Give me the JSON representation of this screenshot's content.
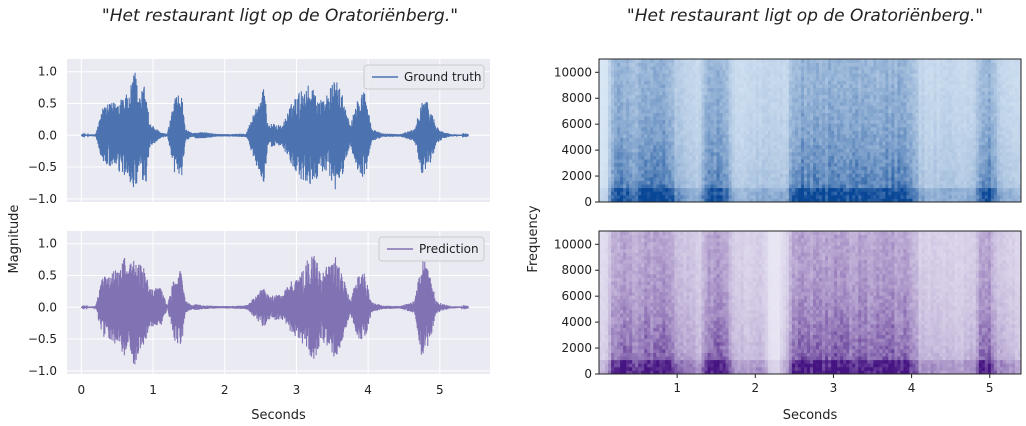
{
  "figure": {
    "left_title": "\"Het restaurant ligt op de Oratoriënberg.\"",
    "right_title": "\"Het restaurant ligt op de Oratoriënberg.\""
  },
  "chart_data": [
    {
      "type": "line",
      "panel": "waveform-top",
      "series": [
        {
          "name": "Ground truth",
          "color": "#4c72b0"
        }
      ],
      "xlim": [
        -0.2,
        5.7
      ],
      "ylim": [
        -1.05,
        1.2
      ],
      "yticks": [
        1.0,
        0.5,
        0.0,
        -0.5,
        -1.0
      ],
      "ytick_labels": [
        "1.0",
        "0.5",
        "0.0",
        "−0.5",
        "−1.0"
      ],
      "grid": true,
      "legend_placement": "top-right",
      "ylabel": "Magnitude",
      "envelope": {
        "x": [
          0,
          0.2,
          0.3,
          0.4,
          0.5,
          0.6,
          0.65,
          0.75,
          0.8,
          0.9,
          0.95,
          1.05,
          1.1,
          1.2,
          1.3,
          1.4,
          1.45,
          1.55,
          1.6,
          1.7,
          1.9,
          2.1,
          2.3,
          2.45,
          2.55,
          2.6,
          2.8,
          2.95,
          3.05,
          3.15,
          3.25,
          3.35,
          3.45,
          3.55,
          3.65,
          3.75,
          3.85,
          3.95,
          4.05,
          4.2,
          4.45,
          4.65,
          4.75,
          4.85,
          4.95,
          5.05,
          5.15,
          5.3,
          5.4
        ],
        "amp": [
          0.005,
          0.02,
          0.45,
          0.5,
          0.55,
          0.7,
          0.6,
          1.05,
          0.6,
          0.85,
          0.2,
          0.1,
          0.05,
          0.02,
          0.6,
          0.65,
          0.1,
          0.03,
          0.05,
          0.05,
          0.02,
          0.02,
          0.03,
          0.5,
          0.75,
          0.2,
          0.15,
          0.55,
          0.7,
          0.8,
          0.75,
          0.55,
          0.7,
          0.9,
          0.6,
          0.15,
          0.55,
          0.75,
          0.1,
          0.03,
          0.02,
          0.1,
          0.6,
          0.5,
          0.15,
          0.05,
          0.02,
          0.01,
          0.005
        ]
      }
    },
    {
      "type": "line",
      "panel": "waveform-bottom",
      "series": [
        {
          "name": "Prediction",
          "color": "#8172b3"
        }
      ],
      "xlim": [
        -0.2,
        5.7
      ],
      "xticks": [
        0,
        1,
        2,
        3,
        4,
        5
      ],
      "xtick_labels": [
        "0",
        "1",
        "2",
        "3",
        "4",
        "5"
      ],
      "xlabel": "Seconds",
      "ylim": [
        -1.05,
        1.2
      ],
      "yticks": [
        1.0,
        0.5,
        0.0,
        -0.5,
        -1.0
      ],
      "ytick_labels": [
        "1.0",
        "0.5",
        "0.0",
        "−0.5",
        "−1.0"
      ],
      "grid": true,
      "legend_placement": "top-right",
      "envelope": {
        "x": [
          0,
          0.2,
          0.3,
          0.4,
          0.5,
          0.6,
          0.65,
          0.75,
          0.8,
          0.9,
          0.95,
          1.05,
          1.1,
          1.2,
          1.3,
          1.4,
          1.45,
          1.55,
          1.6,
          1.7,
          1.9,
          2.1,
          2.3,
          2.45,
          2.55,
          2.6,
          2.8,
          2.95,
          3.05,
          3.15,
          3.25,
          3.35,
          3.45,
          3.55,
          3.65,
          3.75,
          3.85,
          3.95,
          4.05,
          4.2,
          4.45,
          4.65,
          4.75,
          4.85,
          4.95,
          5.05,
          5.15,
          5.3,
          5.4
        ],
        "amp": [
          0.005,
          0.02,
          0.5,
          0.55,
          0.6,
          0.8,
          0.55,
          1.0,
          0.7,
          0.6,
          0.3,
          0.3,
          0.35,
          0.02,
          0.55,
          0.6,
          0.1,
          0.03,
          0.05,
          0.03,
          0.02,
          0.02,
          0.03,
          0.2,
          0.35,
          0.2,
          0.2,
          0.45,
          0.5,
          0.75,
          0.85,
          0.5,
          0.7,
          0.85,
          0.5,
          0.1,
          0.5,
          0.55,
          0.08,
          0.03,
          0.02,
          0.1,
          0.8,
          0.6,
          0.1,
          0.05,
          0.02,
          0.01,
          0.005
        ]
      }
    },
    {
      "type": "heatmap",
      "panel": "spectrogram-top",
      "colormap": "Blues",
      "xlim": [
        0,
        5.4
      ],
      "ylim": [
        0,
        11025
      ],
      "yticks": [
        0,
        2000,
        4000,
        6000,
        8000,
        10000
      ],
      "ytick_labels": [
        "0",
        "2000",
        "4000",
        "6000",
        "8000",
        "10000"
      ],
      "ylabel": "Frequency",
      "energy": {
        "x": [
          0,
          0.1,
          0.2,
          0.3,
          0.4,
          0.5,
          0.6,
          0.7,
          0.8,
          0.9,
          1.0,
          1.1,
          1.2,
          1.3,
          1.4,
          1.5,
          1.6,
          1.7,
          1.8,
          1.9,
          2.0,
          2.1,
          2.2,
          2.3,
          2.4,
          2.5,
          2.6,
          2.7,
          2.8,
          2.9,
          3.0,
          3.1,
          3.2,
          3.3,
          3.4,
          3.5,
          3.6,
          3.7,
          3.8,
          3.9,
          4.0,
          4.1,
          4.2,
          4.3,
          4.4,
          4.5,
          4.6,
          4.7,
          4.8,
          4.9,
          5.0,
          5.1,
          5.2,
          5.3,
          5.4
        ],
        "e": [
          0.05,
          0.1,
          0.85,
          0.9,
          0.8,
          0.75,
          0.9,
          0.85,
          0.95,
          0.8,
          0.45,
          0.35,
          0.3,
          0.3,
          0.85,
          0.9,
          0.85,
          0.3,
          0.25,
          0.25,
          0.3,
          0.3,
          0.3,
          0.3,
          0.3,
          0.8,
          0.9,
          0.85,
          0.85,
          0.9,
          0.95,
          0.9,
          0.85,
          0.9,
          0.95,
          0.9,
          0.8,
          0.9,
          0.85,
          0.9,
          0.75,
          0.35,
          0.3,
          0.3,
          0.3,
          0.3,
          0.3,
          0.3,
          0.35,
          0.9,
          0.85,
          0.4,
          0.3,
          0.25,
          0.2
        ]
      }
    },
    {
      "type": "heatmap",
      "panel": "spectrogram-bottom",
      "colormap": "Purples",
      "xlim": [
        0,
        5.4
      ],
      "xticks": [
        1,
        2,
        3,
        4,
        5
      ],
      "xtick_labels": [
        "1",
        "2",
        "3",
        "4",
        "5"
      ],
      "xlabel": "Seconds",
      "ylim": [
        0,
        11025
      ],
      "yticks": [
        0,
        2000,
        4000,
        6000,
        8000,
        10000
      ],
      "ytick_labels": [
        "0",
        "2000",
        "4000",
        "6000",
        "8000",
        "10000"
      ],
      "energy": {
        "x": [
          0,
          0.1,
          0.2,
          0.3,
          0.4,
          0.5,
          0.6,
          0.7,
          0.8,
          0.9,
          1.0,
          1.1,
          1.2,
          1.3,
          1.4,
          1.5,
          1.6,
          1.7,
          1.8,
          1.9,
          2.0,
          2.1,
          2.2,
          2.3,
          2.4,
          2.5,
          2.6,
          2.7,
          2.8,
          2.9,
          3.0,
          3.1,
          3.2,
          3.3,
          3.4,
          3.5,
          3.6,
          3.7,
          3.8,
          3.9,
          4.0,
          4.1,
          4.2,
          4.3,
          4.4,
          4.5,
          4.6,
          4.7,
          4.8,
          4.9,
          5.0,
          5.1,
          5.2,
          5.3,
          5.4
        ],
        "e": [
          0.15,
          0.2,
          0.8,
          0.85,
          0.75,
          0.7,
          0.9,
          0.8,
          0.95,
          0.75,
          0.5,
          0.45,
          0.4,
          0.35,
          0.8,
          0.9,
          0.85,
          0.35,
          0.3,
          0.3,
          0.3,
          0.3,
          0.05,
          0.05,
          0.3,
          0.8,
          0.85,
          0.8,
          0.8,
          0.85,
          0.9,
          0.85,
          0.8,
          0.85,
          0.9,
          0.85,
          0.8,
          0.9,
          0.85,
          0.9,
          0.75,
          0.35,
          0.35,
          0.3,
          0.3,
          0.3,
          0.3,
          0.3,
          0.35,
          0.9,
          0.85,
          0.4,
          0.35,
          0.3,
          0.25
        ]
      }
    }
  ]
}
